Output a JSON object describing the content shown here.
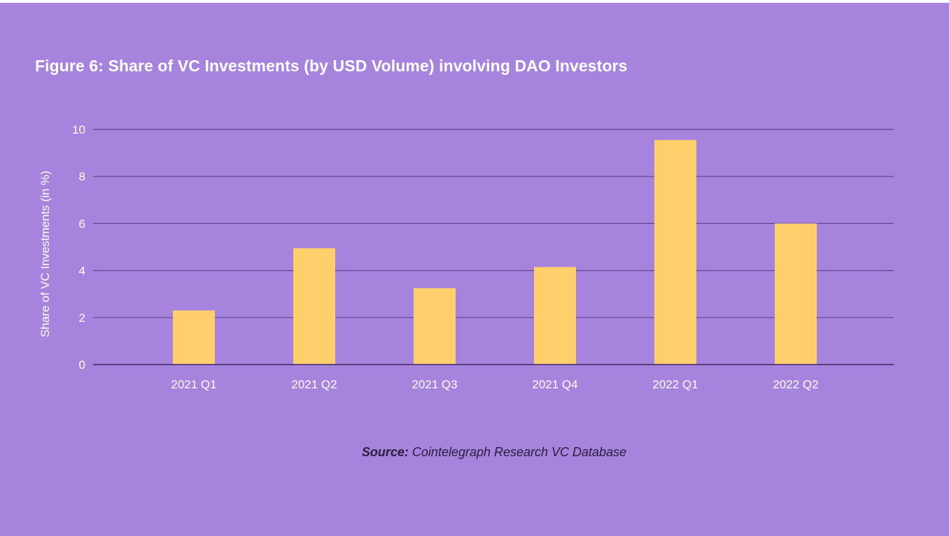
{
  "colors": {
    "background": "#a683dc",
    "bar": "#ffcf6b",
    "gridline": "#5e4591",
    "text": "#ffffff",
    "source_text": "#2a1c3e"
  },
  "source": {
    "label": "Source:",
    "text": "Cointelegraph Research VC Database"
  },
  "chart_data": {
    "type": "bar",
    "title": "Figure 6: Share of VC Investments (by USD Volume) involving DAO Investors",
    "xlabel": "",
    "ylabel": "Share of VC Investments (in %)",
    "categories": [
      "2021 Q1",
      "2021 Q2",
      "2021 Q3",
      "2021 Q4",
      "2022 Q1",
      "2022 Q2"
    ],
    "values": [
      2.3,
      4.95,
      3.25,
      4.15,
      9.55,
      6.0
    ],
    "ylim": [
      0,
      10
    ],
    "yticks": [
      0,
      2,
      4,
      6,
      8,
      10
    ],
    "grid": true,
    "legend": "none"
  }
}
